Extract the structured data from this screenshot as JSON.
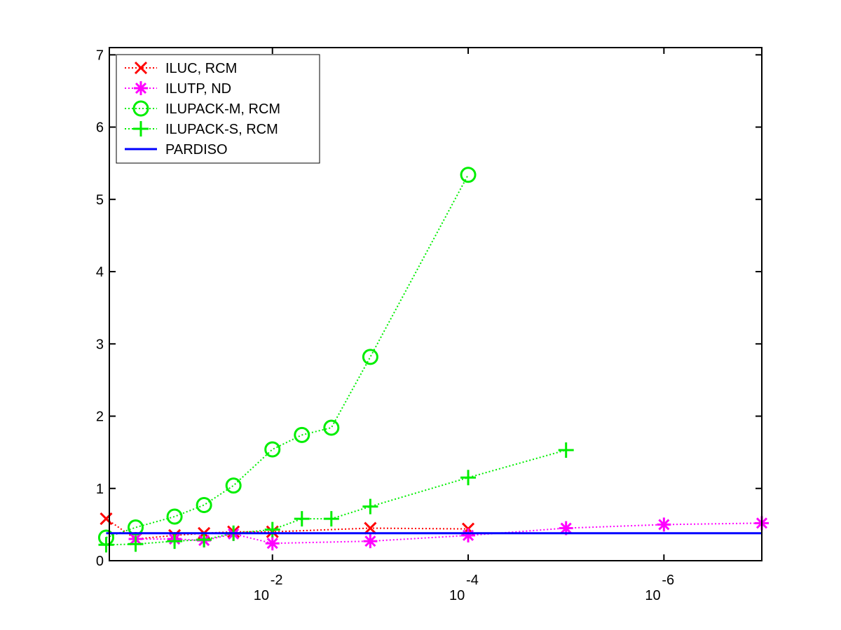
{
  "chart_data": {
    "type": "line",
    "title": "",
    "xlabel": "",
    "ylabel": "",
    "x_scale": "log",
    "x_reversed": true,
    "xlim": [
      0.464,
      1e-07
    ],
    "ylim": [
      0,
      7.1
    ],
    "y_ticks": [
      {
        "value": 0,
        "label": "0"
      },
      {
        "value": 1,
        "label": "1"
      },
      {
        "value": 2,
        "label": "2"
      },
      {
        "value": 3,
        "label": "3"
      },
      {
        "value": 4,
        "label": "4"
      },
      {
        "value": 5,
        "label": "5"
      },
      {
        "value": 6,
        "label": "6"
      },
      {
        "value": 7,
        "label": "7"
      }
    ],
    "x_ticks": [
      {
        "value": 0.01,
        "base": "10",
        "exponent": "-2"
      },
      {
        "value": 0.0001,
        "base": "10",
        "exponent": "-4"
      },
      {
        "value": 1e-06,
        "base": "10",
        "exponent": "-6"
      }
    ],
    "grid": false,
    "legend_position": "top-left",
    "series": [
      {
        "name": "ILUC, RCM",
        "color": "#ff0000",
        "marker": "x",
        "line_style": "dotted",
        "points": [
          {
            "x": 0.5,
            "y": 0.58
          },
          {
            "x": 0.25,
            "y": 0.3
          },
          {
            "x": 0.1,
            "y": 0.35
          },
          {
            "x": 0.05,
            "y": 0.38
          },
          {
            "x": 0.025,
            "y": 0.4
          },
          {
            "x": 0.01,
            "y": 0.4
          },
          {
            "x": 0.001,
            "y": 0.45
          },
          {
            "x": 0.0001,
            "y": 0.44
          }
        ]
      },
      {
        "name": "ILUTP,  ND",
        "color": "#ff00ff",
        "marker": "asterisk",
        "line_style": "dotted",
        "points": [
          {
            "x": 0.25,
            "y": 0.3
          },
          {
            "x": 0.1,
            "y": 0.3
          },
          {
            "x": 0.05,
            "y": 0.28
          },
          {
            "x": 0.025,
            "y": 0.37
          },
          {
            "x": 0.01,
            "y": 0.24
          },
          {
            "x": 0.001,
            "y": 0.27
          },
          {
            "x": 0.0001,
            "y": 0.35
          },
          {
            "x": 1e-05,
            "y": 0.45
          },
          {
            "x": 1e-06,
            "y": 0.5
          },
          {
            "x": 1e-07,
            "y": 0.52
          }
        ]
      },
      {
        "name": "ILUPACK-M, RCM",
        "color": "#00ee00",
        "marker": "circle",
        "line_style": "dotted",
        "points": [
          {
            "x": 0.5,
            "y": 0.32
          },
          {
            "x": 0.25,
            "y": 0.46
          },
          {
            "x": 0.1,
            "y": 0.61
          },
          {
            "x": 0.05,
            "y": 0.77
          },
          {
            "x": 0.025,
            "y": 1.04
          },
          {
            "x": 0.01,
            "y": 1.54
          },
          {
            "x": 0.005,
            "y": 1.74
          },
          {
            "x": 0.0025,
            "y": 1.84
          },
          {
            "x": 0.001,
            "y": 2.82
          },
          {
            "x": 0.0001,
            "y": 5.34
          }
        ]
      },
      {
        "name": "ILUPACK-S, RCM",
        "color": "#00ee00",
        "marker": "plus",
        "line_style": "dotted",
        "points": [
          {
            "x": 0.5,
            "y": 0.22
          },
          {
            "x": 0.25,
            "y": 0.23
          },
          {
            "x": 0.1,
            "y": 0.27
          },
          {
            "x": 0.05,
            "y": 0.29
          },
          {
            "x": 0.025,
            "y": 0.38
          },
          {
            "x": 0.01,
            "y": 0.43
          },
          {
            "x": 0.005,
            "y": 0.58
          },
          {
            "x": 0.0025,
            "y": 0.58
          },
          {
            "x": 0.001,
            "y": 0.75
          },
          {
            "x": 0.0001,
            "y": 1.15
          },
          {
            "x": 1e-05,
            "y": 1.53
          }
        ]
      },
      {
        "name": "PARDISO",
        "color": "#0000ff",
        "marker": "none",
        "line_style": "solid",
        "points": [
          {
            "x": 0.5,
            "y": 0.38
          },
          {
            "x": 1e-07,
            "y": 0.38
          }
        ]
      }
    ]
  }
}
